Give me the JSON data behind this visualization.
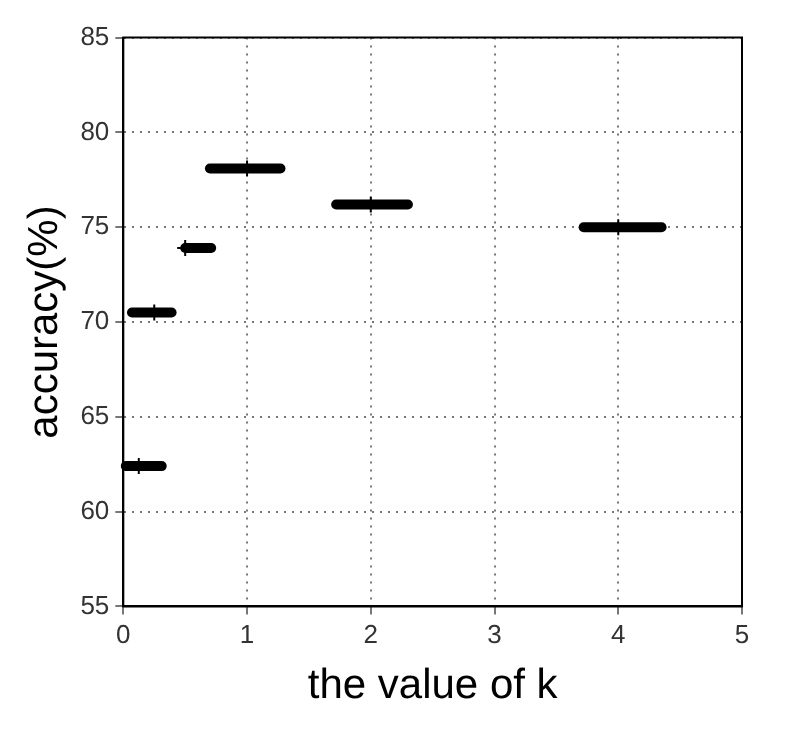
{
  "chart_data": {
    "type": "scatter",
    "xlabel": "the value of k",
    "ylabel": "accuracy(%)",
    "x": [
      0.125,
      0.25,
      0.5,
      1,
      2,
      4
    ],
    "values": [
      62.4,
      70.5,
      73.9,
      78.1,
      76.2,
      75.0
    ],
    "xerrors": [
      [
        0.02,
        0.31
      ],
      [
        0.07,
        0.39
      ],
      [
        0.5,
        0.71
      ],
      [
        0.7,
        1.27
      ],
      [
        1.72,
        2.3
      ],
      [
        3.72,
        4.35
      ]
    ],
    "color": "#000000",
    "marker": "cross",
    "xlim": [
      0,
      5
    ],
    "xticks": [
      0,
      1,
      2,
      3,
      4,
      5
    ],
    "ylim": [
      55,
      85
    ],
    "yticks": [
      55,
      60,
      65,
      70,
      75,
      80,
      85
    ],
    "grid": true
  }
}
